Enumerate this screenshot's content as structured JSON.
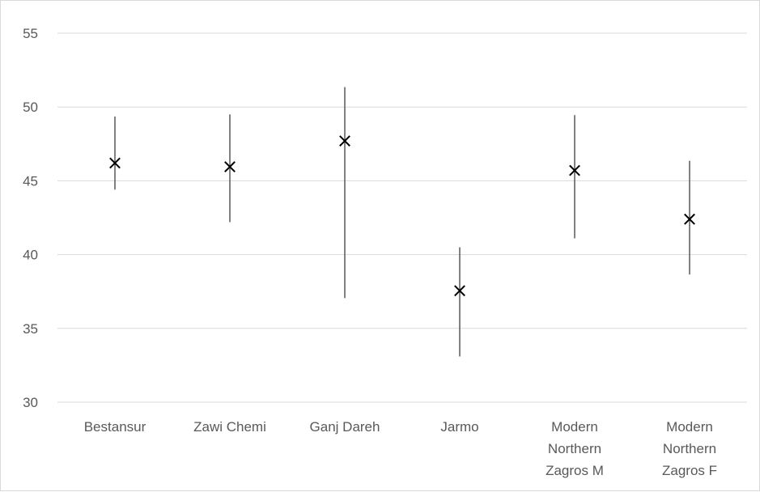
{
  "chart_data": {
    "type": "scatter",
    "title": "",
    "xlabel": "",
    "ylabel": "",
    "ylim": [
      30,
      55
    ],
    "yticks": [
      30,
      35,
      40,
      45,
      50,
      55
    ],
    "grid": true,
    "categories": [
      "Bestansur",
      "Zawi Chemi",
      "Ganj Dareh",
      "Jarmo",
      "Modern Northern Zagros M",
      "Modern Northern Zagros F"
    ],
    "category_label_lines": [
      [
        "Bestansur"
      ],
      [
        "Zawi Chemi"
      ],
      [
        "Ganj Dareh"
      ],
      [
        "Jarmo"
      ],
      [
        "Modern",
        "Northern",
        "Zagros M"
      ],
      [
        "Modern",
        "Northern",
        "Zagros F"
      ]
    ],
    "values": [
      46.2,
      45.95,
      47.7,
      37.55,
      45.7,
      42.4
    ],
    "error_low": [
      44.4,
      42.2,
      37.05,
      33.1,
      41.1,
      38.65
    ],
    "error_high": [
      49.35,
      49.5,
      51.35,
      40.5,
      49.45,
      46.35
    ],
    "marker": "x",
    "colors": {
      "marker": "#000000",
      "error_bar": "#595959",
      "grid": "#d9d9d9",
      "text": "#595959"
    }
  }
}
